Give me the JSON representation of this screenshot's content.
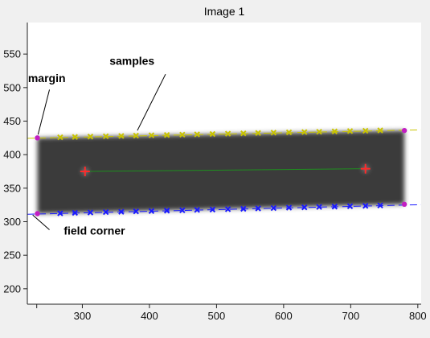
{
  "chart_data": {
    "type": "scatter",
    "title": "Image 1",
    "xlabel": "",
    "ylabel": "",
    "xlim": [
      218,
      805
    ],
    "ylim": [
      177,
      597
    ],
    "x_ticks": [
      300,
      400,
      500,
      600,
      700,
      800
    ],
    "y_ticks": [
      200,
      250,
      300,
      350,
      400,
      450,
      500,
      550
    ],
    "grid": false,
    "field": {
      "corners": [
        [
          233,
          312
        ],
        [
          233,
          425
        ],
        [
          780,
          436
        ],
        [
          780,
          326
        ]
      ],
      "fill_color": "#3a3a3a"
    },
    "centers": {
      "points": [
        [
          304,
          375
        ],
        [
          722,
          379
        ]
      ],
      "color": "#ff2a2a",
      "line_color": "#1f8f1f"
    },
    "series": [
      {
        "color": "#c9c400",
        "marker": "x",
        "line": {
          "x": [
            218,
            805
          ],
          "y": [
            424.4,
            437.0
          ]
        },
        "points": [
          [
            267,
            425.9
          ],
          [
            289,
            426.4
          ],
          [
            312,
            426.9
          ],
          [
            335,
            427.4
          ],
          [
            358,
            427.9
          ],
          [
            380,
            428.4
          ],
          [
            403,
            428.9
          ],
          [
            426,
            429.3
          ],
          [
            449,
            429.8
          ],
          [
            471,
            430.3
          ],
          [
            494,
            430.8
          ],
          [
            517,
            431.3
          ],
          [
            540,
            431.8
          ],
          [
            562,
            432.3
          ],
          [
            585,
            432.8
          ],
          [
            608,
            433.3
          ],
          [
            631,
            433.7
          ],
          [
            653,
            434.2
          ],
          [
            676,
            434.7
          ],
          [
            699,
            435.2
          ],
          [
            722,
            435.7
          ],
          [
            744,
            436.2
          ]
        ]
      },
      {
        "color": "#1a1aff",
        "marker": "x",
        "line": {
          "x": [
            218,
            805
          ],
          "y": [
            311.1,
            325.4
          ]
        },
        "points": [
          [
            267,
            312.5
          ],
          [
            289,
            313.2
          ],
          [
            312,
            313.7
          ],
          [
            335,
            314.3
          ],
          [
            358,
            314.8
          ],
          [
            380,
            315.4
          ],
          [
            403,
            315.9
          ],
          [
            426,
            316.5
          ],
          [
            449,
            317.0
          ],
          [
            471,
            317.6
          ],
          [
            494,
            318.1
          ],
          [
            517,
            318.7
          ],
          [
            540,
            319.2
          ],
          [
            562,
            319.8
          ],
          [
            585,
            320.3
          ],
          [
            608,
            320.9
          ],
          [
            631,
            321.4
          ],
          [
            653,
            322.0
          ],
          [
            676,
            322.5
          ],
          [
            699,
            323.1
          ],
          [
            722,
            323.6
          ],
          [
            744,
            324.2
          ]
        ]
      },
      {
        "color": "#c21ec2",
        "marker": "o",
        "points": [
          [
            233,
            425
          ],
          [
            780,
            436
          ],
          [
            780,
            326
          ],
          [
            233,
            312
          ]
        ]
      }
    ],
    "annotations": [
      {
        "text": "margin",
        "text_at": [
          247,
          508
        ],
        "arrow_to": [
          234,
          430
        ],
        "arrow_from": [
          251,
          497
        ]
      },
      {
        "text": "samples",
        "text_at": [
          374,
          534
        ],
        "arrow_to": [
          382,
          436
        ],
        "arrow_from": [
          424,
          520
        ]
      },
      {
        "text": "field corner",
        "text_at": [
          318,
          281
        ],
        "arrow_to": [
          226,
          310
        ],
        "arrow_from": [
          251,
          288
        ]
      }
    ]
  }
}
